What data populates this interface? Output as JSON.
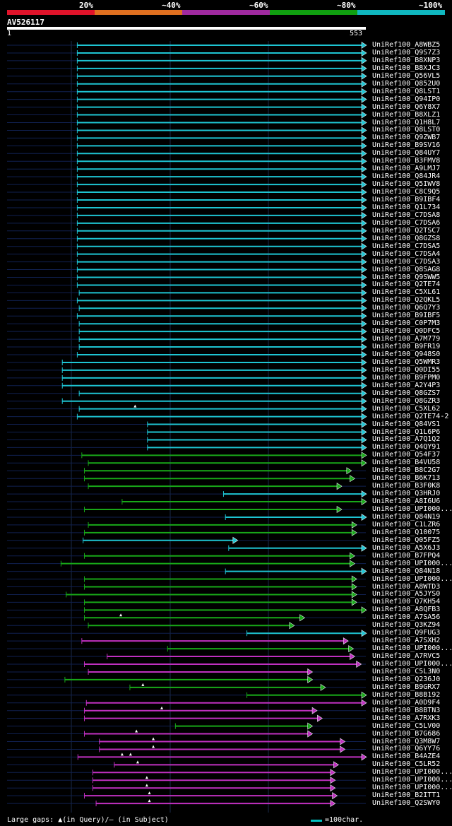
{
  "legend": [
    {
      "label": "20%",
      "color": "#e0132a"
    },
    {
      "label": "~40%",
      "color": "#e07020"
    },
    {
      "label": "~60%",
      "color": "#a02aa0"
    },
    {
      "label": "~80%",
      "color": "#10a010"
    },
    {
      "label": "~100%",
      "color": "#10b8c0"
    }
  ],
  "query": {
    "name": "AV526117",
    "start": "1",
    "end": "553",
    "length": 553
  },
  "colors": {
    "cyan": "#1ec4d2",
    "green": "#18a818",
    "magenta": "#c030c0",
    "faint": "#102050",
    "guide": "#1a2a4a"
  },
  "hits": [
    {
      "label": "UniRef100_A8WBZ5",
      "start": 109,
      "end": 553,
      "color": "cyan"
    },
    {
      "label": "UniRef100_Q9S7Z3",
      "start": 109,
      "end": 553,
      "color": "cyan"
    },
    {
      "label": "UniRef100_B8XNP3",
      "start": 109,
      "end": 553,
      "color": "cyan"
    },
    {
      "label": "UniRef100_B8XJC3",
      "start": 109,
      "end": 553,
      "color": "cyan"
    },
    {
      "label": "UniRef100_Q56VL5",
      "start": 109,
      "end": 553,
      "color": "cyan"
    },
    {
      "label": "UniRef100_Q852U0",
      "start": 109,
      "end": 553,
      "color": "cyan"
    },
    {
      "label": "UniRef100_Q8LST1",
      "start": 109,
      "end": 553,
      "color": "cyan"
    },
    {
      "label": "UniRef100_Q94IP0",
      "start": 109,
      "end": 553,
      "color": "cyan"
    },
    {
      "label": "UniRef100_Q6Y8X7",
      "start": 109,
      "end": 553,
      "color": "cyan"
    },
    {
      "label": "UniRef100_B8XLZ1",
      "start": 109,
      "end": 553,
      "color": "cyan"
    },
    {
      "label": "UniRef100_Q1H8L7",
      "start": 109,
      "end": 553,
      "color": "cyan"
    },
    {
      "label": "UniRef100_Q8LST0",
      "start": 109,
      "end": 553,
      "color": "cyan"
    },
    {
      "label": "UniRef100_Q9ZWB7",
      "start": 109,
      "end": 553,
      "color": "cyan"
    },
    {
      "label": "UniRef100_B9SV16",
      "start": 109,
      "end": 553,
      "color": "cyan"
    },
    {
      "label": "UniRef100_Q84UY7",
      "start": 109,
      "end": 553,
      "color": "cyan"
    },
    {
      "label": "UniRef100_B3FMV8",
      "start": 109,
      "end": 553,
      "color": "cyan"
    },
    {
      "label": "UniRef100_A9LMJ7",
      "start": 109,
      "end": 553,
      "color": "cyan"
    },
    {
      "label": "UniRef100_Q84JR4",
      "start": 109,
      "end": 553,
      "color": "cyan"
    },
    {
      "label": "UniRef100_Q5IWV8",
      "start": 109,
      "end": 553,
      "color": "cyan"
    },
    {
      "label": "UniRef100_C8C9Q5",
      "start": 109,
      "end": 553,
      "color": "cyan"
    },
    {
      "label": "UniRef100_B9IBF4",
      "start": 109,
      "end": 553,
      "color": "cyan"
    },
    {
      "label": "UniRef100_Q1L734",
      "start": 109,
      "end": 553,
      "color": "cyan"
    },
    {
      "label": "UniRef100_C7DSA8",
      "start": 109,
      "end": 553,
      "color": "cyan"
    },
    {
      "label": "UniRef100_C7DSA6",
      "start": 109,
      "end": 553,
      "color": "cyan"
    },
    {
      "label": "UniRef100_Q2TSC7",
      "start": 109,
      "end": 553,
      "color": "cyan"
    },
    {
      "label": "UniRef100_Q8GZS8",
      "start": 109,
      "end": 553,
      "color": "cyan"
    },
    {
      "label": "UniRef100_C7DSA5",
      "start": 109,
      "end": 553,
      "color": "cyan"
    },
    {
      "label": "UniRef100_C7DSA4",
      "start": 109,
      "end": 553,
      "color": "cyan"
    },
    {
      "label": "UniRef100_C7DSA3",
      "start": 109,
      "end": 553,
      "color": "cyan"
    },
    {
      "label": "UniRef100_Q8SAG8",
      "start": 109,
      "end": 553,
      "color": "cyan"
    },
    {
      "label": "UniRef100_Q9SWW5",
      "start": 109,
      "end": 553,
      "color": "cyan"
    },
    {
      "label": "UniRef100_Q2TE74",
      "start": 109,
      "end": 553,
      "color": "cyan"
    },
    {
      "label": "UniRef100_C5XL61",
      "start": 112,
      "end": 553,
      "color": "cyan"
    },
    {
      "label": "UniRef100_Q2QKL5",
      "start": 109,
      "end": 553,
      "color": "cyan"
    },
    {
      "label": "UniRef100_Q6Q7Y3",
      "start": 112,
      "end": 553,
      "color": "cyan"
    },
    {
      "label": "UniRef100_B9IBF5",
      "start": 109,
      "end": 553,
      "color": "cyan"
    },
    {
      "label": "UniRef100_C0P7M3",
      "start": 112,
      "end": 553,
      "color": "cyan"
    },
    {
      "label": "UniRef100_Q0DFC5",
      "start": 112,
      "end": 553,
      "color": "cyan"
    },
    {
      "label": "UniRef100_A7M779",
      "start": 112,
      "end": 553,
      "color": "cyan"
    },
    {
      "label": "UniRef100_B9FR19",
      "start": 112,
      "end": 553,
      "color": "cyan"
    },
    {
      "label": "UniRef100_Q948S0",
      "start": 109,
      "end": 553,
      "color": "cyan"
    },
    {
      "label": "UniRef100_Q5WMR3",
      "start": 86,
      "end": 553,
      "color": "cyan"
    },
    {
      "label": "UniRef100_Q0DI55",
      "start": 86,
      "end": 553,
      "color": "cyan"
    },
    {
      "label": "UniRef100_B9FPM0",
      "start": 86,
      "end": 553,
      "color": "cyan"
    },
    {
      "label": "UniRef100_A2Y4P3",
      "start": 86,
      "end": 553,
      "color": "cyan"
    },
    {
      "label": "UniRef100_Q8GZS7",
      "start": 112,
      "end": 553,
      "color": "cyan"
    },
    {
      "label": "UniRef100_Q8GZR3",
      "start": 86,
      "end": 553,
      "color": "cyan"
    },
    {
      "label": "UniRef100_C5XL62",
      "start": 112,
      "end": 553,
      "color": "cyan",
      "gaps": [
        198
      ]
    },
    {
      "label": "UniRef100_Q2TE74-2",
      "start": 109,
      "end": 553,
      "color": "cyan"
    },
    {
      "label": "UniRef100_Q84VS1",
      "start": 217,
      "end": 553,
      "color": "cyan"
    },
    {
      "label": "UniRef100_Q1L6P6",
      "start": 217,
      "end": 553,
      "color": "cyan"
    },
    {
      "label": "UniRef100_A7Q1Q2",
      "start": 217,
      "end": 553,
      "color": "cyan"
    },
    {
      "label": "UniRef100_Q4QY91",
      "start": 217,
      "end": 553,
      "color": "cyan"
    },
    {
      "label": "UniRef100_Q54F37",
      "start": 116,
      "end": 553,
      "color": "green"
    },
    {
      "label": "UniRef100_B4VU58",
      "start": 126,
      "end": 553,
      "color": "green"
    },
    {
      "label": "UniRef100_B8C2G7",
      "start": 120,
      "end": 530,
      "color": "green"
    },
    {
      "label": "UniRef100_B6K713",
      "start": 120,
      "end": 535,
      "color": "green"
    },
    {
      "label": "UniRef100_B3F0K8",
      "start": 126,
      "end": 515,
      "color": "green"
    },
    {
      "label": "UniRef100_Q3HRJ0",
      "start": 334,
      "end": 553,
      "color": "cyan"
    },
    {
      "label": "UniRef100_A8I6U6",
      "start": 178,
      "end": 553,
      "color": "green"
    },
    {
      "label": "UniRef100_UPI000...",
      "start": 120,
      "end": 515,
      "color": "green"
    },
    {
      "label": "UniRef100_Q84N19",
      "start": 337,
      "end": 553,
      "color": "cyan"
    },
    {
      "label": "UniRef100_C1LZR6",
      "start": 126,
      "end": 538,
      "color": "green"
    },
    {
      "label": "UniRef100_Q10075",
      "start": 120,
      "end": 538,
      "color": "green"
    },
    {
      "label": "UniRef100_Q05FZ5",
      "start": 118,
      "end": 355,
      "color": "cyan"
    },
    {
      "label": "UniRef100_A5X6J3",
      "start": 342,
      "end": 553,
      "color": "cyan"
    },
    {
      "label": "UniRef100_B7FPQ4",
      "start": 120,
      "end": 535,
      "color": "green"
    },
    {
      "label": "UniRef100_UPI000...",
      "start": 84,
      "end": 535,
      "color": "green"
    },
    {
      "label": "UniRef100_Q84N18",
      "start": 337,
      "end": 553,
      "color": "cyan"
    },
    {
      "label": "UniRef100_UPI000...",
      "start": 120,
      "end": 538,
      "color": "green"
    },
    {
      "label": "UniRef100_A8WTD3",
      "start": 120,
      "end": 538,
      "color": "green"
    },
    {
      "label": "UniRef100_A5JYS0",
      "start": 92,
      "end": 538,
      "color": "green"
    },
    {
      "label": "UniRef100_Q7KH54",
      "start": 120,
      "end": 538,
      "color": "green"
    },
    {
      "label": "UniRef100_A8QFB3",
      "start": 120,
      "end": 553,
      "color": "green"
    },
    {
      "label": "UniRef100_A7SA56",
      "start": 120,
      "end": 458,
      "color": "green",
      "gaps": [
        176
      ]
    },
    {
      "label": "UniRef100_Q3KZ94",
      "start": 126,
      "end": 442,
      "color": "green"
    },
    {
      "label": "UniRef100_Q9FUG3",
      "start": 370,
      "end": 553,
      "color": "cyan"
    },
    {
      "label": "UniRef100_A7SXH2",
      "start": 116,
      "end": 525,
      "color": "magenta"
    },
    {
      "label": "UniRef100_UPI000...",
      "start": 248,
      "end": 533,
      "color": "green"
    },
    {
      "label": "UniRef100_A7RVC5",
      "start": 155,
      "end": 535,
      "color": "magenta"
    },
    {
      "label": "UniRef100_UPI000...",
      "start": 120,
      "end": 545,
      "color": "magenta"
    },
    {
      "label": "UniRef100_C5L3N0",
      "start": 126,
      "end": 470,
      "color": "magenta"
    },
    {
      "label": "UniRef100_Q236J0",
      "start": 90,
      "end": 470,
      "color": "green"
    },
    {
      "label": "UniRef100_B9GRX7",
      "start": 190,
      "end": 490,
      "color": "green",
      "gaps": [
        210
      ]
    },
    {
      "label": "UniRef100_B8B192",
      "start": 370,
      "end": 553,
      "color": "green"
    },
    {
      "label": "UniRef100_A0D9F4",
      "start": 123,
      "end": 553,
      "color": "magenta"
    },
    {
      "label": "UniRef100_B8BTN3",
      "start": 120,
      "end": 477,
      "color": "magenta",
      "gaps": [
        239
      ]
    },
    {
      "label": "UniRef100_A7RXK3",
      "start": 120,
      "end": 485,
      "color": "magenta"
    },
    {
      "label": "UniRef100_C5LV00",
      "start": 260,
      "end": 470,
      "color": "green"
    },
    {
      "label": "UniRef100_B7G686",
      "start": 120,
      "end": 470,
      "color": "magenta",
      "gaps": [
        200
      ]
    },
    {
      "label": "UniRef100_Q3M8W7",
      "start": 143,
      "end": 520,
      "color": "magenta",
      "gaps": [
        226
      ]
    },
    {
      "label": "UniRef100_Q6YY76",
      "start": 143,
      "end": 520,
      "color": "magenta",
      "gaps": [
        226
      ]
    },
    {
      "label": "UniRef100_B4AZE4",
      "start": 110,
      "end": 553,
      "color": "magenta",
      "gaps": [
        178,
        191
      ]
    },
    {
      "label": "UniRef100_C5LR52",
      "start": 166,
      "end": 510,
      "color": "magenta",
      "gaps": [
        202
      ]
    },
    {
      "label": "UniRef100_UPI000...",
      "start": 133,
      "end": 505,
      "color": "magenta"
    },
    {
      "label": "UniRef100_UPI000...",
      "start": 133,
      "end": 505,
      "color": "magenta",
      "gaps": [
        216
      ]
    },
    {
      "label": "UniRef100_UPI000...",
      "start": 133,
      "end": 505,
      "color": "magenta",
      "gaps": [
        216
      ]
    },
    {
      "label": "UniRef100_B2ITT1",
      "start": 120,
      "end": 508,
      "color": "magenta",
      "gaps": [
        220
      ]
    },
    {
      "label": "UniRef100_Q2SWY0",
      "start": 138,
      "end": 505,
      "color": "magenta",
      "gaps": [
        220
      ]
    }
  ],
  "footer": {
    "gaps_note": "Large gaps: ▲(in Query)/– (in Subject)",
    "scale_label": "=100char."
  }
}
